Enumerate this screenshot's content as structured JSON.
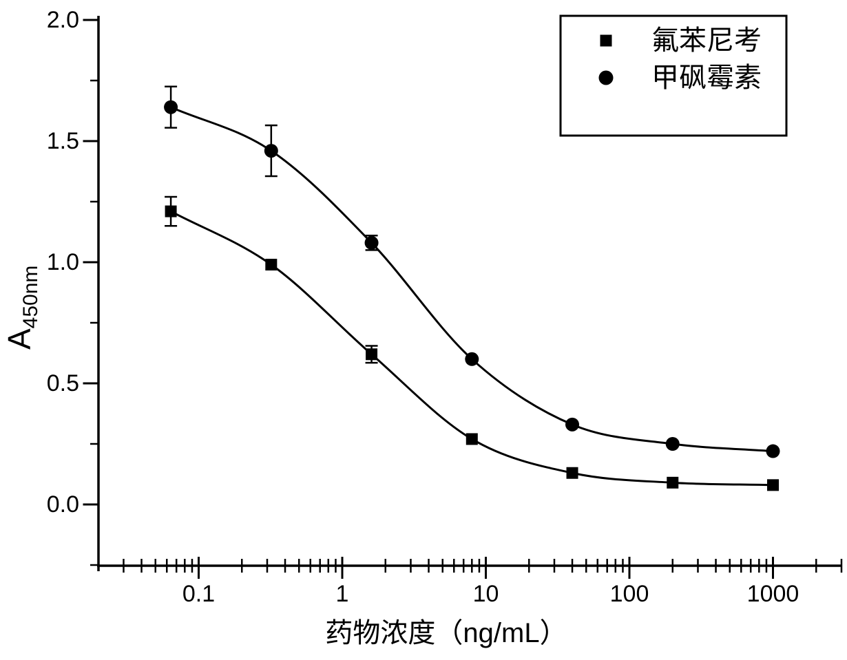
{
  "figure": {
    "background_color": "#ffffff",
    "ink_color": "#000000"
  },
  "chart_data": {
    "type": "scatter",
    "subtype": "dose-response-standard-curve",
    "title": "",
    "xlabel": "药物浓度（ng/mL）",
    "ylabel": "A450nm",
    "ylabel_main": "A",
    "ylabel_sub": "450nm",
    "xscale": "log",
    "yscale": "linear",
    "xlim": [
      0.02,
      3000
    ],
    "ylim": [
      -0.25,
      2.0
    ],
    "grid": false,
    "legend_position": "top-right",
    "x_major_ticks": [
      0.1,
      1,
      10,
      100,
      1000
    ],
    "x_tick_labels": [
      "0.1",
      "1",
      "10",
      "100",
      "1000"
    ],
    "y_major_ticks": [
      0.0,
      0.5,
      1.0,
      1.5,
      2.0
    ],
    "y_tick_labels": [
      "0.0",
      "0.5",
      "1.0",
      "1.5",
      "2.0"
    ],
    "y_minor_step": 0.25,
    "x": [
      0.064,
      0.32,
      1.6,
      8,
      40,
      200,
      1000
    ],
    "series": [
      {
        "id": "florfenicol",
        "name": "氟苯尼考",
        "marker": "square",
        "values": [
          1.21,
          0.99,
          0.62,
          0.27,
          0.13,
          0.09,
          0.08
        ],
        "errors": [
          0.06,
          0,
          0.035,
          0,
          0,
          0,
          0
        ]
      },
      {
        "id": "thiamphenicol",
        "name": "甲砜霉素",
        "marker": "circle",
        "values": [
          1.64,
          1.46,
          1.08,
          0.6,
          0.33,
          0.25,
          0.22
        ],
        "errors": [
          0.085,
          0.105,
          0.03,
          0,
          0,
          0,
          0
        ]
      }
    ]
  }
}
